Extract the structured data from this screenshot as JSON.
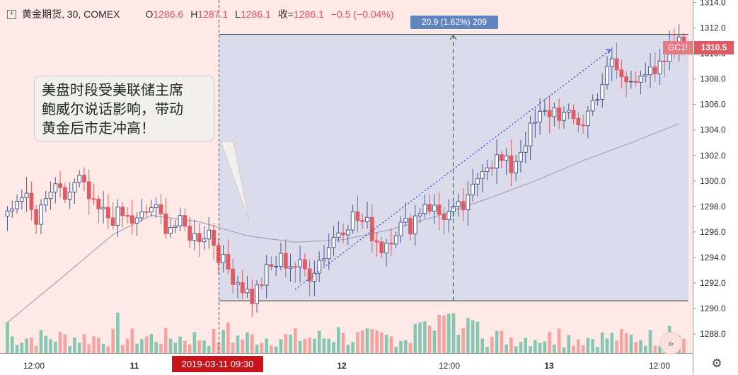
{
  "legend": {
    "symbol": "黄金期货, 30, COMEX",
    "open_label": "O",
    "open": "1286.6",
    "high_label": "H",
    "high": "1287.1",
    "low_label": "L",
    "low": "1286.1",
    "close_label": "收=",
    "close": "1286.1",
    "change": "−0.5 (−0.04%)"
  },
  "callout": {
    "lines": [
      "美盘时段受美联储主席",
      "鲍威尔说话影响，带动",
      "黄金后市走冲高！"
    ]
  },
  "crosshair_date_label": "2019-03-11  09:30",
  "measure_label": "20.9 (1.62%) 209",
  "symbol_tag": "GC1!",
  "last_price_label": "1310.5",
  "colors": {
    "background": "#fde9e6",
    "up": "#4a5a8f",
    "down": "#e05a64",
    "volume_up": "#85c7b3",
    "volume_down": "#f3a3a0",
    "measure_fill": "#d7daeb",
    "moving_average": "#a3a3b8",
    "crosshair": "#c8141b",
    "trendline": "#3047d8"
  },
  "icons": {
    "legend_toggle": "plus-square-icon",
    "scroll_to_end": "double-chevron-right-icon",
    "settings": "gear-icon"
  },
  "chart_data": {
    "type": "candlestick",
    "title": "黄金期货, 30, COMEX",
    "y_axis": {
      "range": [
        1286.5,
        1314.2
      ],
      "ticks": [
        "1314.0",
        "1312.0",
        "1310.0",
        "1308.0",
        "1306.0",
        "1304.0",
        "1302.0",
        "1300.0",
        "1298.0",
        "1296.0",
        "1294.0",
        "1292.0",
        "1290.0",
        "1288.0"
      ]
    },
    "x_axis": {
      "ticks": [
        "12:00",
        "11",
        "12",
        "12:00",
        "13",
        "12:00"
      ]
    },
    "candle_anchors": [
      {
        "pos": 0,
        "close": 1297.0
      },
      {
        "pos": 3,
        "close": 1299.3
      },
      {
        "pos": 6,
        "close": 1296.6
      },
      {
        "pos": 9,
        "close": 1299.2
      },
      {
        "pos": 12,
        "close": 1298.7
      },
      {
        "pos": 15,
        "close": 1300.0
      },
      {
        "pos": 18,
        "close": 1297.8
      },
      {
        "pos": 21,
        "close": 1297.2
      },
      {
        "pos": 24,
        "close": 1297.2
      },
      {
        "pos": 27,
        "close": 1296.7
      },
      {
        "pos": 30,
        "close": 1298.0
      },
      {
        "pos": 33,
        "close": 1296.6
      },
      {
        "pos": 36,
        "close": 1296.5
      },
      {
        "pos": 39,
        "close": 1295.6
      },
      {
        "pos": 42,
        "close": 1296.1
      },
      {
        "pos": 45,
        "close": 1293.5
      },
      {
        "pos": 48,
        "close": 1292.2
      },
      {
        "pos": 51,
        "close": 1290.8
      },
      {
        "pos": 54,
        "close": 1292.8
      },
      {
        "pos": 57,
        "close": 1293.8
      },
      {
        "pos": 60,
        "close": 1293.4
      },
      {
        "pos": 63,
        "close": 1292.8
      },
      {
        "pos": 66,
        "close": 1294.3
      },
      {
        "pos": 69,
        "close": 1296.2
      },
      {
        "pos": 72,
        "close": 1297.2
      },
      {
        "pos": 75,
        "close": 1296.5
      },
      {
        "pos": 78,
        "close": 1294.8
      },
      {
        "pos": 81,
        "close": 1296.3
      },
      {
        "pos": 84,
        "close": 1296.6
      },
      {
        "pos": 87,
        "close": 1298.4
      },
      {
        "pos": 90,
        "close": 1297.4
      },
      {
        "pos": 93,
        "close": 1297.4
      },
      {
        "pos": 96,
        "close": 1298.2
      },
      {
        "pos": 99,
        "close": 1301.4
      },
      {
        "pos": 102,
        "close": 1301.7
      },
      {
        "pos": 105,
        "close": 1301.0
      },
      {
        "pos": 108,
        "close": 1303.3
      },
      {
        "pos": 111,
        "close": 1305.0
      },
      {
        "pos": 114,
        "close": 1305.6
      },
      {
        "pos": 117,
        "close": 1304.8
      },
      {
        "pos": 120,
        "close": 1304.6
      },
      {
        "pos": 123,
        "close": 1307.0
      },
      {
        "pos": 126,
        "close": 1309.2
      },
      {
        "pos": 129,
        "close": 1307.6
      },
      {
        "pos": 132,
        "close": 1308.8
      },
      {
        "pos": 135,
        "close": 1308.0
      },
      {
        "pos": 138,
        "close": 1310.2
      },
      {
        "pos": 140,
        "close": 1311.3
      }
    ],
    "moving_average": [
      {
        "pos": 0,
        "value": 1288.9
      },
      {
        "pos": 10,
        "value": 1292.0
      },
      {
        "pos": 22,
        "value": 1295.8
      },
      {
        "pos": 30,
        "value": 1297.3
      },
      {
        "pos": 40,
        "value": 1296.8
      },
      {
        "pos": 50,
        "value": 1295.7
      },
      {
        "pos": 60,
        "value": 1295.2
      },
      {
        "pos": 70,
        "value": 1295.4
      },
      {
        "pos": 80,
        "value": 1296.2
      },
      {
        "pos": 90,
        "value": 1297.3
      },
      {
        "pos": 100,
        "value": 1298.6
      },
      {
        "pos": 110,
        "value": 1300.0
      },
      {
        "pos": 120,
        "value": 1301.6
      },
      {
        "pos": 130,
        "value": 1303.0
      },
      {
        "pos": 140,
        "value": 1304.5
      }
    ],
    "measure_box": {
      "from_pos": 65,
      "to_pos": 141,
      "low": 1290.6,
      "high": 1311.5,
      "change": 20.9,
      "change_pct": 1.62,
      "bars": 209
    },
    "trendline": {
      "from": {
        "pos": 82,
        "value": 1291.5
      },
      "to": {
        "pos": 180,
        "value": 1310.3
      }
    },
    "last_price": 1310.5,
    "volume_range": [
      0,
      100
    ]
  }
}
